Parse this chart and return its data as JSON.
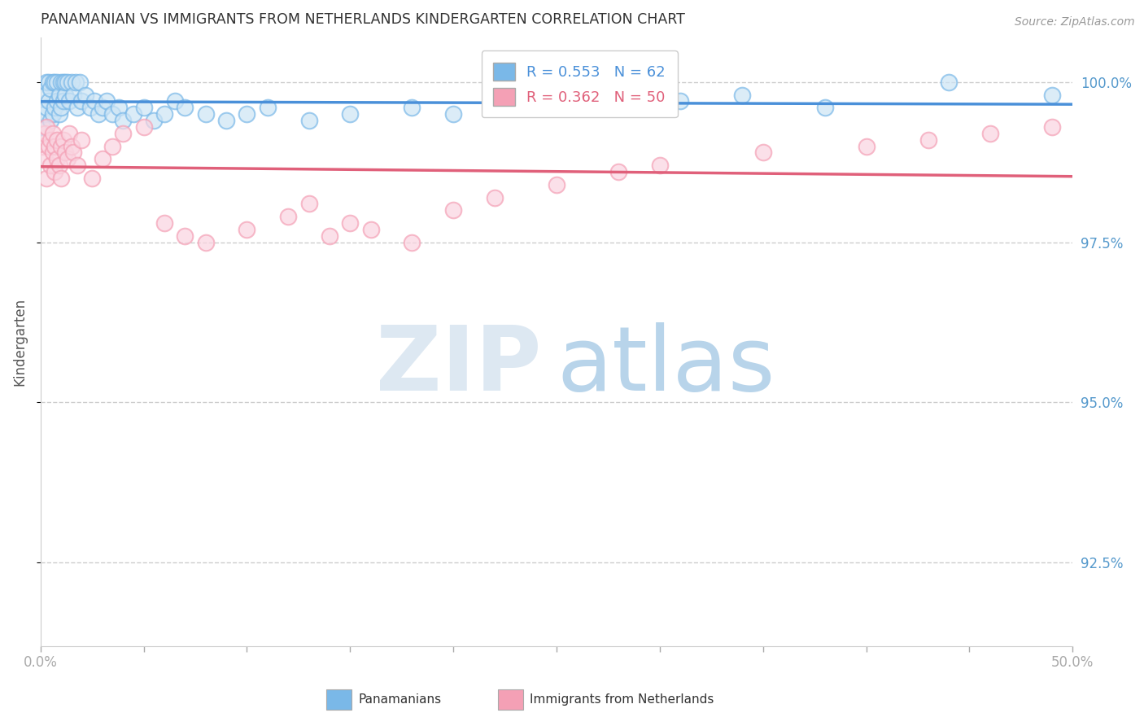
{
  "title": "PANAMANIAN VS IMMIGRANTS FROM NETHERLANDS KINDERGARTEN CORRELATION CHART",
  "source": "Source: ZipAtlas.com",
  "ylabel": "Kindergarten",
  "yticks": [
    92.5,
    95.0,
    97.5,
    100.0
  ],
  "ytick_labels": [
    "92.5%",
    "95.0%",
    "97.5%",
    "100.0%"
  ],
  "xmin": 0.0,
  "xmax": 0.5,
  "ymin": 91.2,
  "ymax": 100.7,
  "blue_R": 0.553,
  "blue_N": 62,
  "pink_R": 0.362,
  "pink_N": 50,
  "blue_color": "#7ab8e8",
  "pink_color": "#f4a0b5",
  "blue_line_color": "#4a90d9",
  "pink_line_color": "#e0607a",
  "title_color": "#333333",
  "axis_label_color": "#555555",
  "tick_color_right": "#5599cc",
  "grid_color": "#cccccc",
  "blue_scatter_x": [
    0.001,
    0.002,
    0.002,
    0.003,
    0.003,
    0.004,
    0.004,
    0.005,
    0.005,
    0.006,
    0.006,
    0.007,
    0.007,
    0.008,
    0.008,
    0.009,
    0.009,
    0.01,
    0.01,
    0.011,
    0.011,
    0.012,
    0.012,
    0.013,
    0.014,
    0.015,
    0.016,
    0.017,
    0.018,
    0.019,
    0.02,
    0.022,
    0.024,
    0.026,
    0.028,
    0.03,
    0.032,
    0.035,
    0.038,
    0.04,
    0.045,
    0.05,
    0.055,
    0.06,
    0.065,
    0.07,
    0.08,
    0.09,
    0.1,
    0.11,
    0.13,
    0.15,
    0.18,
    0.2,
    0.22,
    0.25,
    0.28,
    0.31,
    0.34,
    0.38,
    0.44,
    0.49
  ],
  "blue_scatter_y": [
    99.3,
    99.5,
    99.8,
    99.6,
    100.0,
    99.7,
    100.0,
    99.4,
    99.9,
    99.5,
    100.0,
    99.6,
    100.0,
    99.7,
    100.0,
    99.8,
    99.5,
    99.6,
    100.0,
    99.7,
    100.0,
    99.8,
    100.0,
    100.0,
    99.7,
    100.0,
    99.8,
    100.0,
    99.6,
    100.0,
    99.7,
    99.8,
    99.6,
    99.7,
    99.5,
    99.6,
    99.7,
    99.5,
    99.6,
    99.4,
    99.5,
    99.6,
    99.4,
    99.5,
    99.7,
    99.6,
    99.5,
    99.4,
    99.5,
    99.6,
    99.4,
    99.5,
    99.6,
    99.5,
    99.6,
    99.7,
    99.6,
    99.7,
    99.8,
    99.6,
    100.0,
    99.8
  ],
  "pink_scatter_x": [
    0.001,
    0.002,
    0.002,
    0.003,
    0.003,
    0.004,
    0.005,
    0.005,
    0.006,
    0.006,
    0.007,
    0.007,
    0.008,
    0.008,
    0.009,
    0.01,
    0.01,
    0.011,
    0.012,
    0.013,
    0.014,
    0.015,
    0.016,
    0.018,
    0.02,
    0.025,
    0.03,
    0.035,
    0.04,
    0.05,
    0.06,
    0.07,
    0.08,
    0.1,
    0.12,
    0.13,
    0.14,
    0.15,
    0.16,
    0.18,
    0.2,
    0.22,
    0.25,
    0.28,
    0.3,
    0.35,
    0.4,
    0.43,
    0.46,
    0.49
  ],
  "pink_scatter_y": [
    99.0,
    99.2,
    98.8,
    99.3,
    98.5,
    99.0,
    99.1,
    98.7,
    99.2,
    98.9,
    99.0,
    98.6,
    99.1,
    98.8,
    98.7,
    99.0,
    98.5,
    99.1,
    98.9,
    98.8,
    99.2,
    99.0,
    98.9,
    98.7,
    99.1,
    98.5,
    98.8,
    99.0,
    99.2,
    99.3,
    97.8,
    97.6,
    97.5,
    97.7,
    97.9,
    98.1,
    97.6,
    97.8,
    97.7,
    97.5,
    98.0,
    98.2,
    98.4,
    98.6,
    98.7,
    98.9,
    99.0,
    99.1,
    99.2,
    99.3
  ]
}
